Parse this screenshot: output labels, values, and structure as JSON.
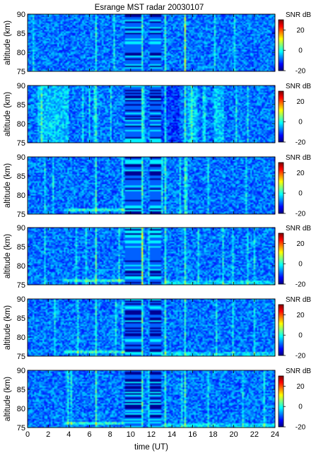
{
  "chart_data": {
    "type": "heatmap",
    "title": "Esrange MST radar 20030107",
    "xlabel": "time (UT)",
    "ylabel": "altitude (km)",
    "colorbar_label": "SNR dB",
    "xlim": [
      0,
      24
    ],
    "ylim": [
      75,
      90
    ],
    "clim": [
      -20,
      30
    ],
    "x_ticks": [
      0,
      2,
      4,
      6,
      8,
      10,
      12,
      14,
      16,
      18,
      20,
      22,
      24
    ],
    "y_ticks": [
      75,
      80,
      85,
      90
    ],
    "colorbar_ticks": [
      -20,
      0,
      20
    ],
    "colormap": "jet",
    "panel_count": 6,
    "features": {
      "striped_intervals_ut": [
        [
          9.5,
          11.0
        ],
        [
          11.9,
          13.0
        ]
      ],
      "bright_vertical_lines_ut": [
        6.7,
        11.1,
        13.3,
        15.3
      ]
    }
  }
}
